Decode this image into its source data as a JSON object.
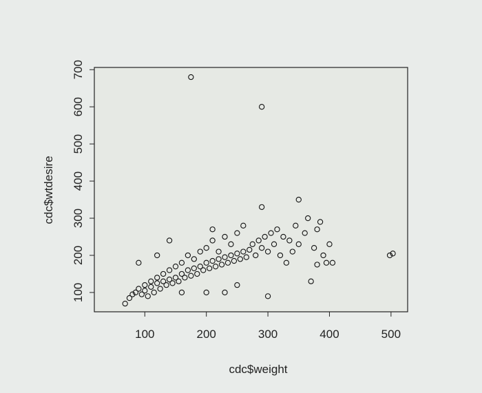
{
  "chart_data": {
    "type": "scatter",
    "xlabel": "cdc$weight",
    "ylabel": "cdc$wtdesire",
    "x": [
      68,
      75,
      80,
      85,
      90,
      90,
      95,
      100,
      100,
      105,
      110,
      110,
      115,
      120,
      120,
      125,
      130,
      130,
      135,
      140,
      140,
      145,
      150,
      150,
      155,
      160,
      160,
      165,
      170,
      170,
      175,
      180,
      180,
      185,
      190,
      190,
      195,
      200,
      200,
      205,
      210,
      210,
      215,
      220,
      220,
      225,
      230,
      230,
      235,
      240,
      240,
      245,
      250,
      250,
      255,
      260,
      260,
      265,
      270,
      275,
      280,
      285,
      290,
      295,
      300,
      300,
      305,
      310,
      315,
      320,
      325,
      330,
      335,
      340,
      345,
      350,
      350,
      360,
      365,
      370,
      375,
      380,
      385,
      390,
      395,
      400,
      405,
      380,
      140,
      210,
      290,
      175,
      290,
      498,
      503,
      120,
      160,
      250,
      230,
      200
    ],
    "y": [
      70,
      85,
      95,
      100,
      110,
      180,
      95,
      105,
      120,
      90,
      115,
      130,
      100,
      125,
      140,
      110,
      130,
      150,
      120,
      135,
      160,
      125,
      140,
      170,
      130,
      150,
      180,
      140,
      160,
      200,
      145,
      165,
      190,
      150,
      170,
      210,
      160,
      180,
      220,
      165,
      185,
      240,
      170,
      190,
      210,
      175,
      195,
      250,
      180,
      200,
      230,
      185,
      205,
      260,
      190,
      210,
      280,
      195,
      215,
      230,
      200,
      240,
      220,
      250,
      210,
      90,
      260,
      230,
      270,
      200,
      250,
      180,
      240,
      210,
      280,
      350,
      230,
      260,
      300,
      130,
      220,
      270,
      290,
      200,
      180,
      230,
      180,
      175,
      240,
      270,
      330,
      680,
      600,
      200,
      205,
      200,
      100,
      120,
      100,
      100
    ],
    "xlim": [
      18,
      527
    ],
    "ylim": [
      48,
      706
    ],
    "xticks": [
      100,
      200,
      300,
      400,
      500
    ],
    "yticks": [
      100,
      200,
      300,
      400,
      500,
      600,
      700
    ],
    "color": "#111111"
  }
}
